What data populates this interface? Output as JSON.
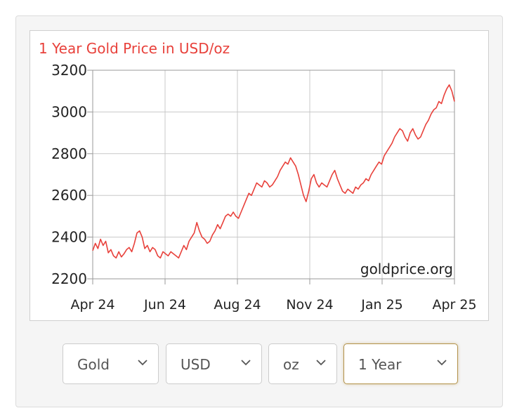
{
  "chart_data": {
    "type": "line",
    "title": "1 Year Gold Price in USD/oz",
    "watermark": "goldprice.org",
    "x_tick_labels": [
      "Apr 24",
      "Jun 24",
      "Aug 24",
      "Nov 24",
      "Jan 25",
      "Apr 25"
    ],
    "y_tick_labels": [
      "3200",
      "3000",
      "2800",
      "2600",
      "2400",
      "2200"
    ],
    "ylim": [
      2200,
      3200
    ],
    "grid": true,
    "line_color": "#e8413b",
    "title_color": "#e8413b",
    "series": [
      {
        "values": [
          2335,
          2370,
          2345,
          2390,
          2360,
          2380,
          2325,
          2340,
          2310,
          2300,
          2330,
          2305,
          2320,
          2340,
          2350,
          2330,
          2370,
          2420,
          2430,
          2400,
          2345,
          2360,
          2330,
          2350,
          2340,
          2310,
          2300,
          2330,
          2320,
          2310,
          2330,
          2320,
          2310,
          2300,
          2330,
          2360,
          2340,
          2380,
          2400,
          2420,
          2470,
          2430,
          2400,
          2390,
          2370,
          2380,
          2410,
          2430,
          2460,
          2440,
          2470,
          2500,
          2510,
          2500,
          2520,
          2500,
          2490,
          2520,
          2550,
          2580,
          2610,
          2600,
          2630,
          2660,
          2650,
          2640,
          2670,
          2660,
          2640,
          2650,
          2670,
          2690,
          2720,
          2740,
          2760,
          2750,
          2780,
          2760,
          2740,
          2700,
          2650,
          2600,
          2570,
          2620,
          2680,
          2700,
          2660,
          2640,
          2660,
          2650,
          2640,
          2670,
          2700,
          2720,
          2680,
          2650,
          2620,
          2610,
          2630,
          2620,
          2610,
          2640,
          2630,
          2650,
          2660,
          2680,
          2670,
          2700,
          2720,
          2740,
          2760,
          2750,
          2790,
          2810,
          2830,
          2850,
          2880,
          2900,
          2920,
          2910,
          2880,
          2860,
          2900,
          2920,
          2890,
          2870,
          2880,
          2910,
          2940,
          2960,
          2990,
          3010,
          3020,
          3050,
          3040,
          3080,
          3110,
          3130,
          3100,
          3050
        ]
      }
    ]
  },
  "controls": {
    "metal": "Gold",
    "currency": "USD",
    "unit": "oz",
    "period": "1 Year"
  },
  "colors": {
    "active_border": "#b3924a",
    "grid": "#c8c8c8"
  }
}
